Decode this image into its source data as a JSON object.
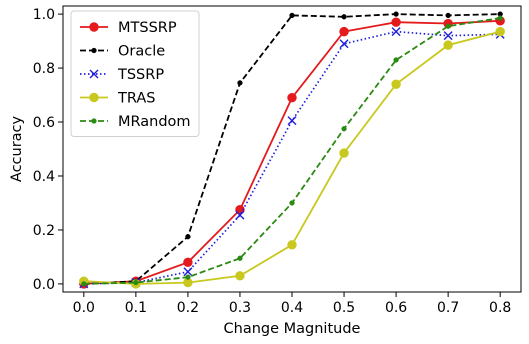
{
  "chart_data": {
    "type": "line",
    "title": "",
    "xlabel": "Change Magnitude",
    "ylabel": "Accuracy",
    "xlim": [
      -0.04,
      0.84
    ],
    "ylim": [
      -0.03,
      1.03
    ],
    "x_ticks": [
      0.0,
      0.1,
      0.2,
      0.3,
      0.4,
      0.5,
      0.6,
      0.7,
      0.8
    ],
    "x_tick_labels": [
      "0.0",
      "0.1",
      "0.2",
      "0.3",
      "0.4",
      "0.5",
      "0.6",
      "0.7",
      "0.8"
    ],
    "y_ticks": [
      0.0,
      0.2,
      0.4,
      0.6,
      0.8,
      1.0
    ],
    "y_tick_labels": [
      "0.0",
      "0.2",
      "0.4",
      "0.6",
      "0.8",
      "1.0"
    ],
    "grid": false,
    "legend_position": "top-left",
    "x": [
      0.0,
      0.1,
      0.2,
      0.3,
      0.4,
      0.5,
      0.6,
      0.7,
      0.8
    ],
    "series": [
      {
        "name": "MTSSRP",
        "color": "#e41a1c",
        "line_style": "solid",
        "marker": "circle",
        "values": [
          0.0,
          0.01,
          0.08,
          0.275,
          0.69,
          0.935,
          0.97,
          0.965,
          0.975
        ]
      },
      {
        "name": "Oracle",
        "color": "#000000",
        "line_style": "dashed",
        "marker": "dot",
        "values": [
          0.0,
          0.01,
          0.175,
          0.745,
          0.995,
          0.99,
          1.0,
          0.995,
          1.0
        ]
      },
      {
        "name": "TSSRP",
        "color": "#1f1fdc",
        "line_style": "dotted",
        "marker": "x",
        "values": [
          0.0,
          0.005,
          0.045,
          0.255,
          0.605,
          0.89,
          0.935,
          0.92,
          0.925
        ]
      },
      {
        "name": "TRAS",
        "color": "#c8c81e",
        "line_style": "solid",
        "marker": "circle",
        "values": [
          0.01,
          0.0,
          0.005,
          0.03,
          0.145,
          0.485,
          0.74,
          0.885,
          0.935
        ]
      },
      {
        "name": "MRandom",
        "color": "#2a8a12",
        "line_style": "dashed",
        "marker": "dot",
        "values": [
          0.0,
          0.005,
          0.025,
          0.095,
          0.3,
          0.575,
          0.83,
          0.955,
          0.985
        ]
      }
    ]
  }
}
